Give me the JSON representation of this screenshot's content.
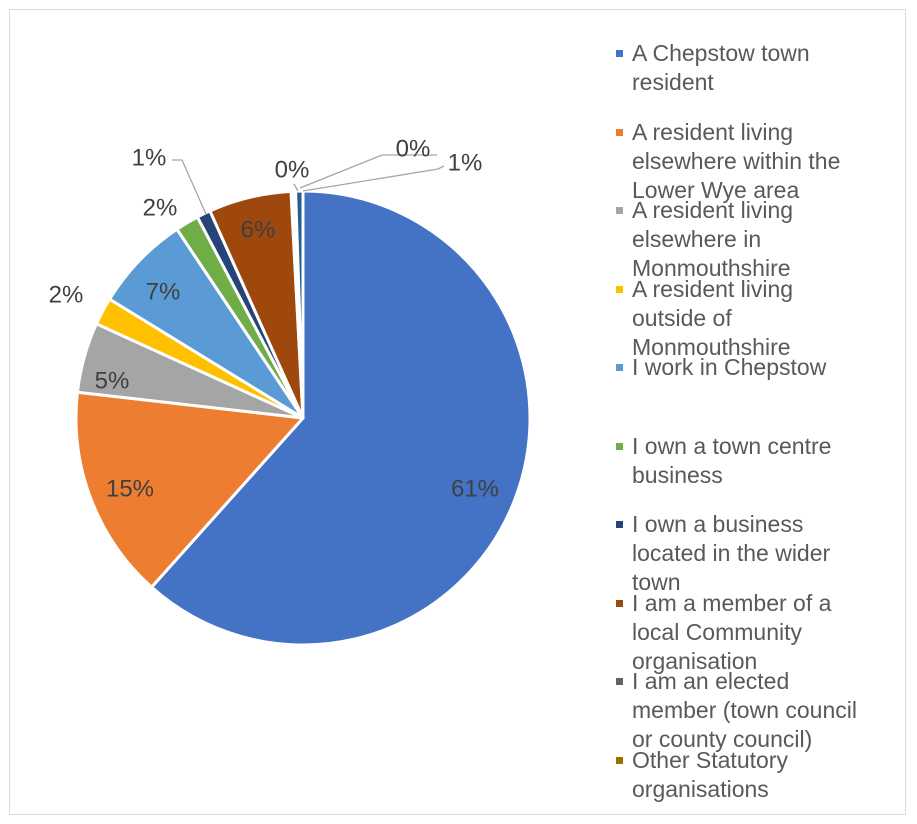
{
  "chart_data": {
    "type": "pie",
    "title": "",
    "slices": [
      {
        "label": "A Chepstow town resident",
        "value": 61,
        "display": "61%",
        "color": "#4472C4"
      },
      {
        "label": "A resident living elsewhere within the Lower Wye area",
        "value": 15,
        "display": "15%",
        "color": "#ED7D31"
      },
      {
        "label": "A resident living elsewhere in Monmouthshire",
        "value": 5,
        "display": "5%",
        "color": "#A5A5A5"
      },
      {
        "label": "A resident living outside of Monmouthshire",
        "value": 2,
        "display": "2%",
        "color": "#FFC000"
      },
      {
        "label": "I work in Chepstow",
        "value": 7,
        "display": "7%",
        "color": "#5B9BD5"
      },
      {
        "label": "I own a town centre business",
        "value": 2,
        "display": "2%",
        "color": "#70AD47"
      },
      {
        "label": "I own a business located in the wider town",
        "value": 1,
        "display": "1%",
        "color": "#264478"
      },
      {
        "label": "I am a member of a local Community organisation",
        "value": 6,
        "display": "6%",
        "color": "#9E480E"
      },
      {
        "label": "I am an elected member (town council or county council)",
        "value": 0,
        "display": "0%",
        "color": "#636363"
      },
      {
        "label": "Other Statutory organisations",
        "value": 0,
        "display": "0%",
        "color": "#997300"
      },
      {
        "label": "",
        "value": 1,
        "display": "1%",
        "color": "#255E91"
      }
    ],
    "legend_placement": "right"
  }
}
